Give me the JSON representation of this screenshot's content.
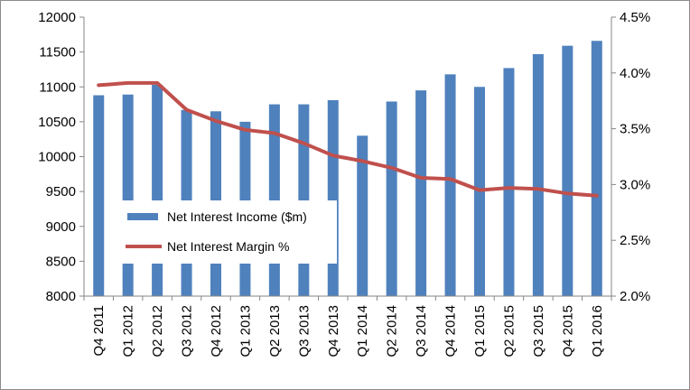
{
  "chart_data": {
    "type": "bar",
    "title": "",
    "xlabel": "",
    "ylabel": "",
    "categories": [
      "Q4 2011",
      "Q1 2012",
      "Q2 2012",
      "Q3 2012",
      "Q4 2012",
      "Q1 2013",
      "Q2 2013",
      "Q3 2013",
      "Q4 2013",
      "Q1 2014",
      "Q2 2014",
      "Q3 2014",
      "Q4 2014",
      "Q1 2015",
      "Q2 2015",
      "Q3 2015",
      "Q4 2015",
      "Q1 2016"
    ],
    "series": [
      {
        "name": "Net Interest Income ($m)",
        "type": "bar",
        "axis": "left",
        "color": "#4f81bd",
        "values": [
          10880,
          10890,
          11030,
          10670,
          10650,
          10500,
          10750,
          10750,
          10810,
          10300,
          10790,
          10950,
          11180,
          11000,
          11270,
          11470,
          11590,
          11660
        ]
      },
      {
        "name": "Net Interest Margin %",
        "type": "line",
        "axis": "right",
        "color": "#c0504d",
        "values": [
          3.89,
          3.91,
          3.91,
          3.67,
          3.57,
          3.49,
          3.46,
          3.37,
          3.26,
          3.21,
          3.15,
          3.06,
          3.05,
          2.95,
          2.97,
          2.96,
          2.92,
          2.9
        ]
      }
    ],
    "ylim": [
      8000,
      12000
    ],
    "y_ticks": [
      8000,
      8500,
      9000,
      9500,
      10000,
      10500,
      11000,
      11500,
      12000
    ],
    "y2lim": [
      2.0,
      4.5
    ],
    "y2_ticks": [
      "2.0%",
      "2.5%",
      "3.0%",
      "3.5%",
      "4.0%",
      "4.5%"
    ],
    "grid": false,
    "legend": {
      "placement": "inside-left"
    }
  }
}
